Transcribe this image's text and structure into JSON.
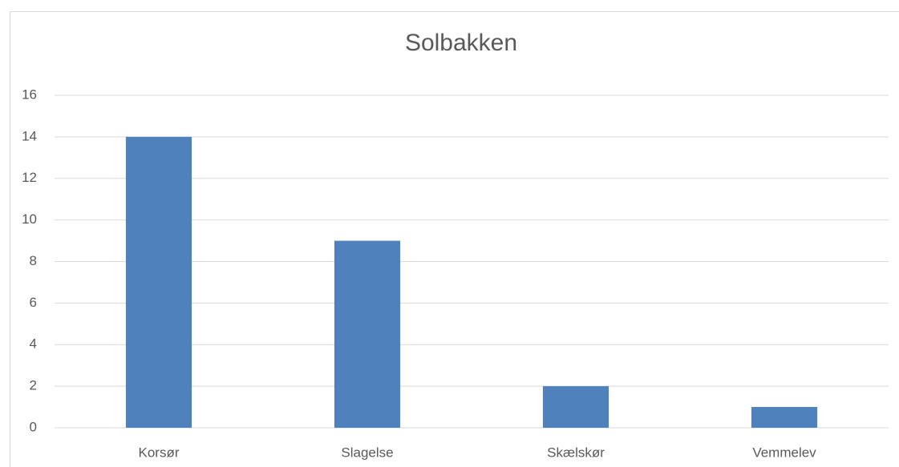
{
  "chart_data": {
    "type": "bar",
    "title": "Solbakken",
    "categories": [
      "Korsør",
      "Slagelse",
      "Skælskør",
      "Vemmelev"
    ],
    "values": [
      14,
      9,
      2,
      1
    ],
    "color": "#4f81bd",
    "ylim": [
      0,
      16
    ],
    "yticks": [
      0,
      2,
      4,
      6,
      8,
      10,
      12,
      14,
      16
    ],
    "grid": true
  }
}
